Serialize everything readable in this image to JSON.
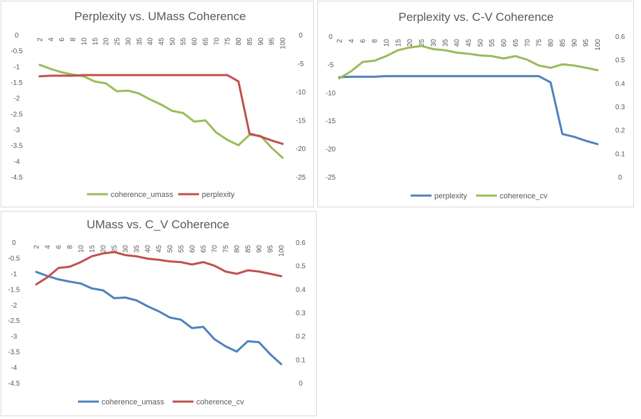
{
  "chart_data": [
    {
      "type": "line",
      "title": "Perplexity vs. UMass Coherence",
      "categories": [
        "2",
        "4",
        "6",
        "8",
        "10",
        "15",
        "20",
        "25",
        "30",
        "35",
        "40",
        "45",
        "50",
        "55",
        "60",
        "65",
        "70",
        "75",
        "80",
        "85",
        "90",
        "95",
        "100"
      ],
      "y_left_lim": [
        -4.5,
        0
      ],
      "y_left_ticks": [
        "0",
        "-0.5",
        "-1",
        "-1.5",
        "-2",
        "-2.5",
        "-3",
        "-3.5",
        "-4",
        "-4.5"
      ],
      "y_right_lim": [
        -25,
        0
      ],
      "y_right_ticks": [
        "0",
        "-5",
        "-10",
        "-15",
        "-20",
        "-25"
      ],
      "legend_position": "bottom",
      "series": [
        {
          "name": "coherence_umass",
          "axis": "left",
          "color": "#9bbb59",
          "values": [
            -0.95,
            -1.08,
            -1.19,
            -1.26,
            -1.32,
            -1.48,
            -1.54,
            -1.79,
            -1.77,
            -1.86,
            -2.05,
            -2.21,
            -2.41,
            -2.48,
            -2.75,
            -2.71,
            -3.1,
            -3.33,
            -3.5,
            -3.17,
            -3.2,
            -3.58,
            -3.9
          ]
        },
        {
          "name": "perplexity",
          "axis": "right",
          "color": "#c0504d",
          "values": [
            -7.3,
            -7.2,
            -7.2,
            -7.2,
            -7.1,
            -7.1,
            -7.1,
            -7.1,
            -7.1,
            -7.1,
            -7.1,
            -7.1,
            -7.1,
            -7.1,
            -7.1,
            -7.1,
            -7.1,
            -7.1,
            -8.2,
            -17.4,
            -17.9,
            -18.6,
            -19.2
          ]
        }
      ]
    },
    {
      "type": "line",
      "title": "Perplexity vs. C-V Coherence",
      "categories": [
        "2",
        "4",
        "6",
        "8",
        "10",
        "15",
        "20",
        "25",
        "30",
        "35",
        "40",
        "45",
        "50",
        "55",
        "60",
        "65",
        "70",
        "75",
        "80",
        "85",
        "90",
        "95",
        "100"
      ],
      "y_left_lim": [
        -25,
        0
      ],
      "y_left_ticks": [
        "0",
        "-5",
        "-10",
        "-15",
        "-20",
        "-25"
      ],
      "y_right_lim": [
        0,
        0.6
      ],
      "y_right_ticks": [
        "0.6",
        "0.5",
        "0.4",
        "0.3",
        "0.2",
        "0.1",
        "0"
      ],
      "legend_position": "bottom",
      "series": [
        {
          "name": "perplexity",
          "axis": "left",
          "color": "#4f81bd",
          "values": [
            -7.3,
            -7.2,
            -7.2,
            -7.2,
            -7.1,
            -7.1,
            -7.1,
            -7.1,
            -7.1,
            -7.1,
            -7.1,
            -7.1,
            -7.1,
            -7.1,
            -7.1,
            -7.1,
            -7.1,
            -7.1,
            -8.2,
            -17.4,
            -17.9,
            -18.6,
            -19.2
          ]
        },
        {
          "name": "coherence_cv",
          "axis": "right",
          "color": "#9bbb59",
          "values": [
            0.42,
            0.45,
            0.49,
            0.495,
            0.515,
            0.54,
            0.552,
            0.558,
            0.545,
            0.54,
            0.53,
            0.525,
            0.518,
            0.515,
            0.505,
            0.515,
            0.5,
            0.475,
            0.465,
            0.48,
            0.475,
            0.465,
            0.455
          ]
        }
      ]
    },
    {
      "type": "line",
      "title": "UMass vs. C_V Coherence",
      "categories": [
        "2",
        "4",
        "6",
        "8",
        "10",
        "15",
        "20",
        "25",
        "30",
        "35",
        "40",
        "45",
        "50",
        "55",
        "60",
        "65",
        "70",
        "75",
        "80",
        "85",
        "90",
        "95",
        "100"
      ],
      "y_left_lim": [
        -4.5,
        0
      ],
      "y_left_ticks": [
        "0",
        "-0.5",
        "-1",
        "-1.5",
        "-2",
        "-2.5",
        "-3",
        "-3.5",
        "-4",
        "-4.5"
      ],
      "y_right_lim": [
        0,
        0.6
      ],
      "y_right_ticks": [
        "0.6",
        "0.5",
        "0.4",
        "0.3",
        "0.2",
        "0.1",
        "0"
      ],
      "legend_position": "bottom",
      "series": [
        {
          "name": "coherence_umass",
          "axis": "left",
          "color": "#4f81bd",
          "values": [
            -0.95,
            -1.08,
            -1.19,
            -1.26,
            -1.32,
            -1.48,
            -1.54,
            -1.79,
            -1.77,
            -1.86,
            -2.05,
            -2.21,
            -2.41,
            -2.48,
            -2.75,
            -2.71,
            -3.1,
            -3.33,
            -3.5,
            -3.17,
            -3.2,
            -3.58,
            -3.9
          ]
        },
        {
          "name": "coherence_cv",
          "axis": "right",
          "color": "#c0504d",
          "values": [
            0.42,
            0.45,
            0.49,
            0.495,
            0.515,
            0.54,
            0.552,
            0.558,
            0.545,
            0.54,
            0.53,
            0.525,
            0.518,
            0.515,
            0.505,
            0.515,
            0.5,
            0.475,
            0.465,
            0.48,
            0.475,
            0.465,
            0.455
          ]
        }
      ]
    }
  ]
}
